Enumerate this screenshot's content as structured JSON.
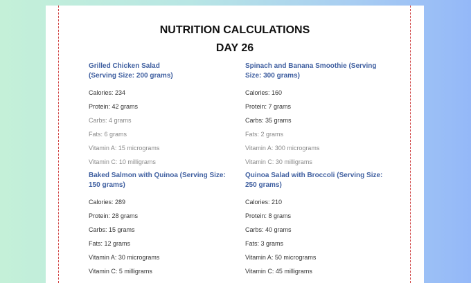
{
  "document": {
    "title": "NUTRITION CALCULATIONS",
    "subtitle": "DAY 26",
    "meals": [
      {
        "name": "Grilled Chicken Salad",
        "serving": "(Serving Size: 200 grams)",
        "items": [
          "Calories: 234",
          "Protein: 42 grams",
          "Carbs: 4 grams",
          "Fats: 6 grams",
          "Vitamin A: 15 micrograms",
          "Vitamin C: 10 milligrams"
        ]
      },
      {
        "name": "Spinach and Banana Smoothie (Serving",
        "serving": "Size: 300 grams)",
        "items": [
          "Calories: 160",
          "Protein: 7 grams",
          "Carbs: 35 grams",
          "Fats: 2 grams",
          "Vitamin A: 300 micrograms",
          "Vitamin C: 30 milligrams"
        ]
      },
      {
        "name": "Baked Salmon with Quinoa (Serving Size:",
        "serving": "150 grams)",
        "items": [
          "Calories: 289",
          "Protein: 28 grams",
          "Carbs: 15 grams",
          "Fats: 12 grams",
          "Vitamin A: 30 micrograms",
          "Vitamin C: 5 milligrams"
        ]
      },
      {
        "name": "Quinoa Salad with Broccoli (Serving Size:",
        "serving": "250 grams)",
        "items": [
          "Calories: 210",
          "Protein: 8 grams",
          "Carbs: 40 grams",
          "Fats: 3 grams",
          "Vitamin A: 50 micrograms",
          "Vitamin C: 45 milligrams"
        ]
      }
    ]
  }
}
